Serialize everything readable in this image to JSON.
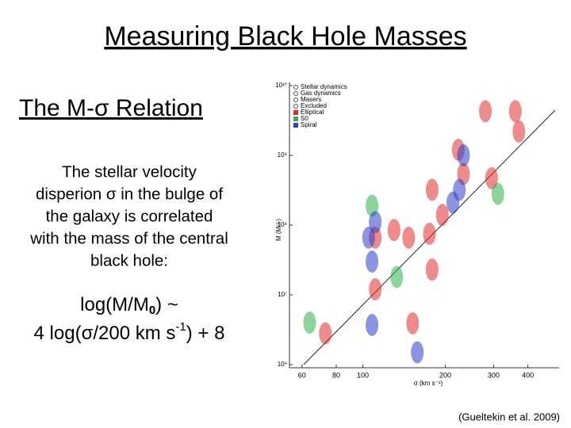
{
  "title": "Measuring Black Hole Masses",
  "subtitle": "The M-σ Relation",
  "body": [
    "The stellar velocity",
    "disperion σ in the bulge of",
    "the galaxy is correlated",
    "with the mass of the central",
    "black hole:"
  ],
  "equation": [
    {
      "text": "log(M/M",
      "sub": "0",
      "tail": ") ~"
    },
    {
      "text": "4 log(σ/200 km s",
      "sup": "-1",
      "tail": ") + 8"
    }
  ],
  "citation": "(Gueltekin et al. 2009)",
  "chart_data": {
    "type": "scatter",
    "x_label": "σ (km s⁻¹)",
    "y_label": "M (M☉)",
    "log_x": true,
    "log_y": true,
    "xlim": [
      54,
      520
    ],
    "ylim": [
      1000000,
      10000000000
    ],
    "xticks": [
      60,
      80,
      100,
      200,
      300,
      400
    ],
    "yticks": [
      {
        "value": 1000000,
        "label": "10⁶"
      },
      {
        "value": 10000000,
        "label": "10⁷"
      },
      {
        "value": 100000000,
        "label": "10⁸"
      },
      {
        "value": 1000000000,
        "label": "10⁹"
      },
      {
        "value": 10000000000,
        "label": "10¹⁰"
      }
    ],
    "legend_methods": [
      "Stellar dynamics",
      "Gas dynamics",
      "Masers",
      "Excluded"
    ],
    "series": [
      {
        "name": "Elliptical",
        "color": "#e42b2b",
        "x": [
          360,
          280,
          371,
          223,
          233,
          295,
          179,
          195,
          175,
          130,
          111,
          147,
          179,
          73,
          152,
          111
        ],
        "values": [
          4300000000,
          4300000000,
          2200000000,
          1200000000,
          540000000,
          470000000,
          320000000,
          140000000,
          75000000,
          85000000,
          66000000,
          66000000,
          23000000,
          2800000,
          3900000,
          12000000
        ]
      },
      {
        "name": "S0",
        "color": "#2fb34a",
        "x": [
          133,
          108,
          311,
          64
        ],
        "values": [
          18000000,
          190000000,
          280000000,
          4000000
        ]
      },
      {
        "name": "Spiral",
        "color": "#2a3fc8",
        "x": [
          105,
          225,
          213,
          111,
          108,
          158,
          108,
          233
        ],
        "values": [
          66000000,
          320000000,
          210000000,
          110000000,
          3700000,
          1500000,
          30000000,
          1000000000
        ]
      }
    ]
  }
}
